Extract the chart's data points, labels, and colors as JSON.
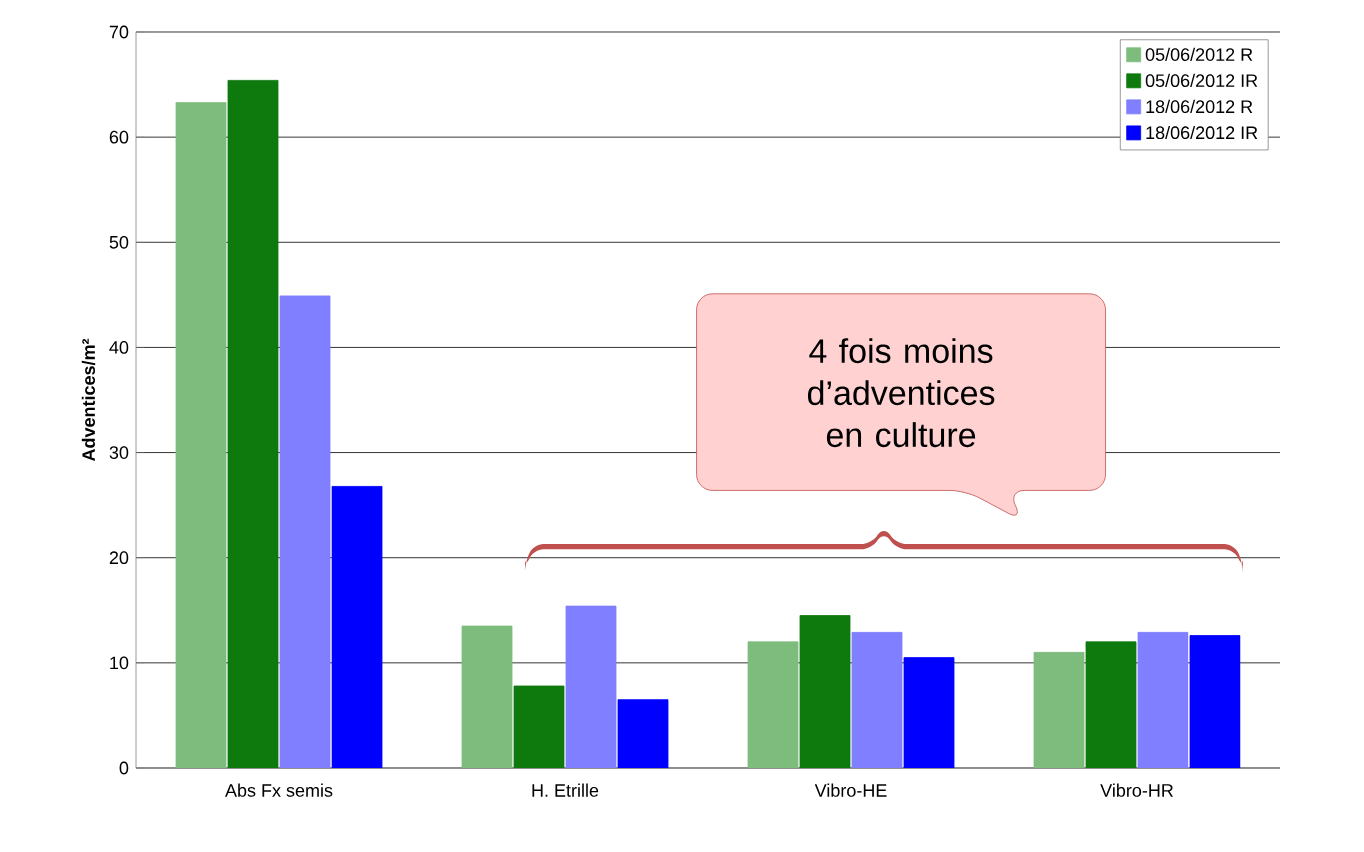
{
  "chart_data": {
    "type": "bar",
    "ylabel": "Adventices/m²",
    "categories": [
      "Abs Fx semis",
      "H. Etrille",
      "Vibro-HE",
      "Vibro-HR"
    ],
    "series": [
      {
        "name": "05/06/2012 R",
        "color": "#7dbc7d",
        "values": [
          63.3,
          13.5,
          12,
          11
        ]
      },
      {
        "name": "05/06/2012 IR",
        "color": "#0e7a0e",
        "values": [
          65.4,
          7.8,
          14.5,
          12
        ]
      },
      {
        "name": "18/06/2012 R",
        "color": "#7f7fff",
        "values": [
          44.9,
          15.4,
          12.9,
          12.9
        ]
      },
      {
        "name": "18/06/2012 IR",
        "color": "#0000ff",
        "values": [
          26.8,
          6.5,
          10.5,
          12.6
        ]
      }
    ],
    "ylim": [
      0,
      70
    ],
    "yticks": [
      0,
      10,
      20,
      30,
      40,
      50,
      60,
      70
    ],
    "grid": "y",
    "legend": "top right",
    "annotations": [
      "4 fois moins d’adventices en culture"
    ]
  }
}
